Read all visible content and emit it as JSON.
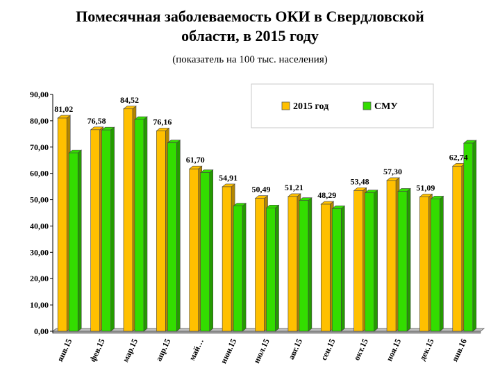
{
  "header": {
    "title_line1": "Помесячная заболеваемость ОКИ в Свердловской",
    "title_line2": "области,  в 2015 году",
    "subtitle": "(показатель на 100 тыс. населения)"
  },
  "chart_data": {
    "type": "bar",
    "title": "Помесячная заболеваемость ОКИ в Свердловской области,  в 2015 году",
    "subtitle": "(показатель на 100 тыс. населения)",
    "categories": [
      "янв.15",
      "фев.15",
      "мар.15",
      "апр.15",
      "май…",
      "июн.15",
      "июл.15",
      "авг.15",
      "сен.15",
      "окт.15",
      "ноя.15",
      "дек.15",
      "янв.16"
    ],
    "series": [
      {
        "name": "2015 год",
        "color": "#FFC000",
        "values": [
          81.02,
          76.58,
          84.52,
          76.16,
          61.7,
          54.91,
          50.49,
          51.21,
          48.29,
          53.48,
          57.3,
          51.09,
          62.74
        ],
        "labels": [
          "81,02",
          "76,58",
          "84,52",
          "76,16",
          "61,70",
          "54,91",
          "50,49",
          "51,21",
          "48,29",
          "53,48",
          "57,30",
          "51,09",
          "62,74"
        ]
      },
      {
        "name": "СМУ",
        "color": "#33DD00",
        "values": [
          67.8,
          76.5,
          80.5,
          71.6,
          60.3,
          47.6,
          46.9,
          49.7,
          46.6,
          52.6,
          53.2,
          50.3,
          71.5
        ]
      }
    ],
    "ylim": [
      0,
      90
    ],
    "yticks": [
      "0,00",
      "10,00",
      "20,00",
      "30,00",
      "40,00",
      "50,00",
      "60,00",
      "70,00",
      "80,00",
      "90,00"
    ],
    "legend": "top-right",
    "grid": false
  }
}
